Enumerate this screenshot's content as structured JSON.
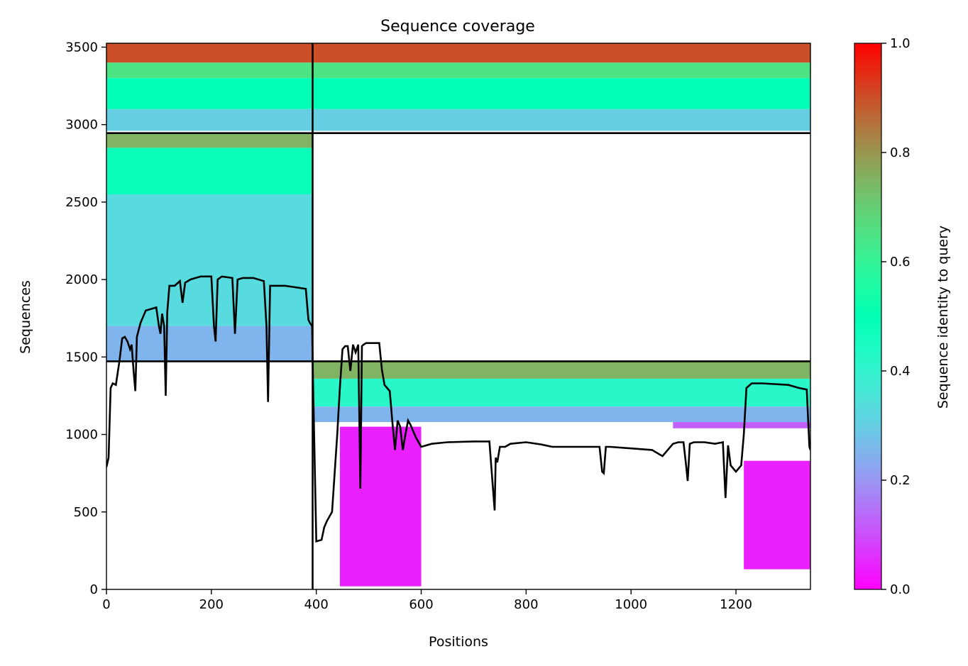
{
  "chart_data": {
    "type": "heatmap",
    "title": "Sequence coverage",
    "xlabel": "Positions",
    "ylabel": "Sequences",
    "xlim": [
      0,
      1342
    ],
    "ylim": [
      0,
      3525
    ],
    "x_ticks": [
      0,
      200,
      400,
      600,
      800,
      1000,
      1200
    ],
    "y_ticks": [
      0,
      500,
      1000,
      1500,
      2000,
      2500,
      3000,
      3500
    ],
    "colorbar": {
      "label": "Sequence identity to query",
      "colormap": "rainbow",
      "range": [
        0,
        1
      ],
      "ticks": [
        0.0,
        0.2,
        0.4,
        0.6,
        0.8,
        1.0
      ],
      "tick_labels": [
        "0.0",
        "0.2",
        "0.4",
        "0.6",
        "0.8",
        "1.0"
      ]
    },
    "divider_lines": {
      "x": [
        393
      ],
      "y": [
        1472,
        2945
      ]
    },
    "blocks": [
      {
        "x": [
          0,
          393
        ],
        "y": [
          2945,
          3525
        ],
        "bands": [
          {
            "y": [
              3400,
              3525
            ],
            "identity": 0.9
          },
          {
            "y": [
              3300,
              3400
            ],
            "identity": 0.65
          },
          {
            "y": [
              3100,
              3300
            ],
            "identity": 0.5
          },
          {
            "y": [
              2960,
              3100
            ],
            "identity": 0.3
          }
        ]
      },
      {
        "x": [
          393,
          1342
        ],
        "y": [
          2945,
          3525
        ],
        "bands": [
          {
            "y": [
              3400,
              3525
            ],
            "identity": 0.9
          },
          {
            "y": [
              3300,
              3400
            ],
            "identity": 0.65
          },
          {
            "y": [
              3100,
              3300
            ],
            "identity": 0.5
          },
          {
            "y": [
              2960,
              3100
            ],
            "identity": 0.3
          }
        ]
      },
      {
        "x": [
          0,
          393
        ],
        "y": [
          1472,
          2945
        ],
        "bands": [
          {
            "y": [
              2850,
              2945
            ],
            "identity": 0.75
          },
          {
            "y": [
              2550,
              2850
            ],
            "identity": 0.48
          },
          {
            "y": [
              1700,
              2550
            ],
            "identity": 0.33
          },
          {
            "y": [
              1472,
              1700
            ],
            "identity": 0.25
          }
        ]
      },
      {
        "x": [
          393,
          1342
        ],
        "y": [
          1080,
          1472
        ],
        "bands": [
          {
            "y": [
              1360,
              1472
            ],
            "identity": 0.75
          },
          {
            "y": [
              1180,
              1360
            ],
            "identity": 0.42
          },
          {
            "y": [
              1080,
              1180
            ],
            "identity": 0.25
          }
        ]
      },
      {
        "x": [
          1080,
          1342
        ],
        "y": [
          1040,
          1080
        ],
        "bands": [
          {
            "y": [
              1040,
              1080
            ],
            "identity": 0.12
          }
        ]
      },
      {
        "x": [
          445,
          600
        ],
        "y": [
          20,
          1050
        ],
        "bands": [
          {
            "y": [
              20,
              1050
            ],
            "identity": 0.04
          }
        ]
      },
      {
        "x": [
          1215,
          1342
        ],
        "y": [
          130,
          830
        ],
        "bands": [
          {
            "y": [
              130,
              830
            ],
            "identity": 0.04
          }
        ]
      }
    ],
    "coverage_line": {
      "name": "coverage",
      "x": [
        0,
        4,
        8,
        12,
        18,
        25,
        30,
        35,
        40,
        45,
        48,
        52,
        55,
        58,
        65,
        75,
        85,
        95,
        100,
        103,
        106,
        110,
        113,
        116,
        120,
        130,
        140,
        145,
        150,
        160,
        170,
        180,
        200,
        205,
        208,
        212,
        220,
        240,
        245,
        250,
        260,
        280,
        300,
        305,
        308,
        312,
        320,
        340,
        360,
        380,
        385,
        388,
        392,
        393,
        400,
        410,
        415,
        420,
        430,
        440,
        445,
        450,
        455,
        460,
        465,
        470,
        475,
        480,
        484,
        487,
        490,
        495,
        500,
        510,
        520,
        525,
        530,
        540,
        545,
        550,
        555,
        560,
        565,
        570,
        575,
        580,
        590,
        600,
        620,
        650,
        700,
        730,
        740,
        742,
        745,
        750,
        760,
        770,
        800,
        830,
        850,
        900,
        940,
        945,
        948,
        952,
        960,
        1000,
        1040,
        1060,
        1080,
        1090,
        1100,
        1105,
        1108,
        1112,
        1120,
        1140,
        1160,
        1175,
        1180,
        1185,
        1190,
        1200,
        1210,
        1215,
        1220,
        1230,
        1250,
        1300,
        1320,
        1335,
        1340,
        1342
      ],
      "y": [
        790,
        850,
        1300,
        1330,
        1320,
        1480,
        1620,
        1630,
        1600,
        1550,
        1580,
        1400,
        1280,
        1630,
        1720,
        1800,
        1810,
        1820,
        1700,
        1650,
        1780,
        1700,
        1250,
        1790,
        1960,
        1960,
        1990,
        1850,
        1980,
        2000,
        2010,
        2020,
        2020,
        1700,
        1600,
        2000,
        2020,
        2010,
        1650,
        2000,
        2010,
        2010,
        1990,
        1700,
        1210,
        1960,
        1960,
        1960,
        1950,
        1940,
        1740,
        1720,
        1700,
        1480,
        310,
        320,
        400,
        440,
        500,
        1000,
        1300,
        1550,
        1570,
        1570,
        1410,
        1580,
        1530,
        1580,
        650,
        1570,
        1580,
        1590,
        1590,
        1590,
        1590,
        1420,
        1320,
        1280,
        1080,
        900,
        1090,
        1050,
        900,
        1000,
        1090,
        1060,
        980,
        920,
        940,
        950,
        955,
        955,
        510,
        850,
        820,
        920,
        920,
        940,
        950,
        935,
        920,
        920,
        920,
        760,
        750,
        920,
        920,
        910,
        900,
        860,
        940,
        950,
        950,
        800,
        700,
        940,
        950,
        950,
        940,
        950,
        590,
        930,
        800,
        760,
        800,
        1000,
        1300,
        1330,
        1330,
        1320,
        1300,
        1290,
        920,
        900
      ]
    }
  }
}
